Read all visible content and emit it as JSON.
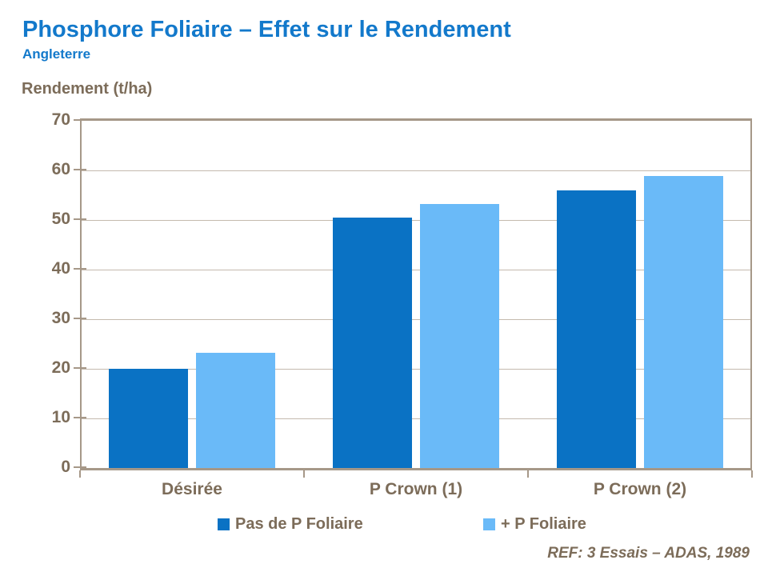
{
  "slide": {
    "title": "Phosphore Foliaire – Effet sur le Rendement",
    "subtitle": "Angleterre",
    "y_axis_title": "Rendement (t/ha)",
    "reference": "REF: 3 Essais – ADAS, 1989"
  },
  "colors": {
    "background": "#FFFFFF",
    "title_blue": "#1379CB",
    "text_brown": "#7C6C59",
    "grid_line": "#C4BAAE",
    "axis_border": "#A69888",
    "bar_dark_blue": "#0A72C4",
    "bar_light_blue": "#6ABAF8"
  },
  "chart_data": {
    "type": "bar",
    "title": "Phosphore Foliaire – Effet sur le Rendement",
    "subtitle": "Angleterre",
    "xlabel": "",
    "ylabel": "Rendement (t/ha)",
    "categories": [
      "Désirée",
      "P Crown (1)",
      "P Crown (2)"
    ],
    "series": [
      {
        "name": "Pas de P Foliaire",
        "color": "#0A72C4",
        "values": [
          20.0,
          50.5,
          56.0
        ]
      },
      {
        "name": "+ P Foliaire",
        "color": "#6ABAF8",
        "values": [
          23.2,
          53.3,
          58.9
        ]
      }
    ],
    "ylim": [
      0,
      70
    ],
    "y_ticks": [
      0,
      10,
      20,
      30,
      40,
      50,
      60,
      70
    ],
    "grid": "horizontal",
    "legend_position": "bottom",
    "annotation": "REF: 3 Essais – ADAS, 1989"
  }
}
